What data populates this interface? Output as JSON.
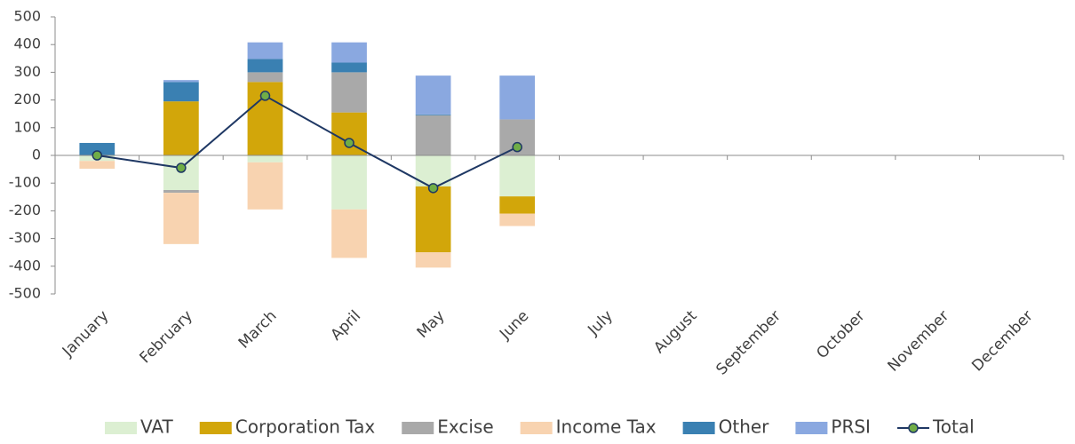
{
  "chart_data": {
    "type": "bar",
    "stacked": true,
    "categories": [
      "January",
      "February",
      "March",
      "April",
      "May",
      "June",
      "July",
      "August",
      "September",
      "October",
      "November",
      "December"
    ],
    "ylim": [
      -500,
      500
    ],
    "yticks": [
      -500,
      -400,
      -300,
      -200,
      -100,
      0,
      100,
      200,
      300,
      400,
      500
    ],
    "grid": false,
    "legend": "bottom",
    "series": [
      {
        "name": "VAT",
        "color": "#dcefd2",
        "values": [
          -20,
          -125,
          -25,
          -195,
          -112,
          -148,
          null,
          null,
          null,
          null,
          null,
          null
        ]
      },
      {
        "name": "Corporation Tax",
        "color": "#d2a60a",
        "values": [
          null,
          195,
          265,
          155,
          -238,
          -62,
          null,
          null,
          null,
          null,
          null,
          null
        ]
      },
      {
        "name": "Excise",
        "color": "#a9a9a9",
        "values": [
          null,
          -10,
          35,
          145,
          145,
          130,
          null,
          null,
          null,
          null,
          null,
          null
        ]
      },
      {
        "name": "Income Tax",
        "color": "#f8d3b0",
        "values": [
          -28,
          -185,
          -170,
          -175,
          -55,
          -45,
          null,
          null,
          null,
          null,
          null,
          null
        ]
      },
      {
        "name": "Other",
        "color": "#3a80b2",
        "values": [
          45,
          70,
          48,
          35,
          3,
          null,
          null,
          null,
          null,
          null,
          null,
          null
        ]
      },
      {
        "name": "PRSI",
        "color": "#8aa8e0",
        "values": [
          null,
          7,
          60,
          73,
          140,
          158,
          null,
          null,
          null,
          null,
          null,
          null
        ]
      },
      {
        "name": "Total",
        "type": "line",
        "color": "#1f3864",
        "marker_color": "#70ad47",
        "values": [
          0,
          -45,
          215,
          45,
          -118,
          30,
          null,
          null,
          null,
          null,
          null,
          null
        ]
      }
    ]
  }
}
